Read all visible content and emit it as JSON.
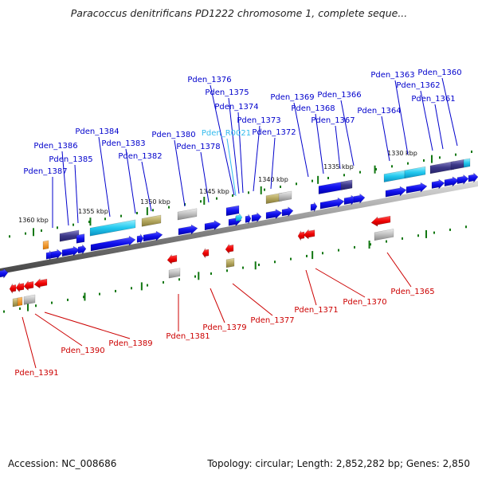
{
  "title": "Paracoccus denitrificans PD1222 chromosome 1, complete seque...",
  "accession": "Accession: NC_008686",
  "topology": "Topology: circular; Length: 2,852,282 bp; Genes: 2,850",
  "colors": {
    "top_label": "#0000cc",
    "rna_label": "#33bbee",
    "bottom_label": "#cc0000",
    "tick": "#117711",
    "backbone": "#888888"
  },
  "ruler_labels": [
    "1360 kbp",
    "1355 kbp",
    "1350 kbp",
    "1345 kbp",
    "1340 kbp",
    "1335 kbp",
    "1330 kbp"
  ],
  "top_genes": [
    {
      "label": "Pden_1387",
      "kind": "gene"
    },
    {
      "label": "Pden_1386",
      "kind": "gene"
    },
    {
      "label": "Pden_1385",
      "kind": "gene"
    },
    {
      "label": "Pden_1384",
      "kind": "gene"
    },
    {
      "label": "Pden_1383",
      "kind": "gene"
    },
    {
      "label": "Pden_1382",
      "kind": "gene"
    },
    {
      "label": "Pden_1380",
      "kind": "gene"
    },
    {
      "label": "Pden_1378",
      "kind": "gene"
    },
    {
      "label": "Pden_1376",
      "kind": "gene"
    },
    {
      "label": "Pden_1375",
      "kind": "gene"
    },
    {
      "label": "Pden_1374",
      "kind": "gene"
    },
    {
      "label": "Pden_R0021",
      "kind": "rna"
    },
    {
      "label": "Pden_1373",
      "kind": "gene"
    },
    {
      "label": "Pden_1372",
      "kind": "gene"
    },
    {
      "label": "Pden_1369",
      "kind": "gene"
    },
    {
      "label": "Pden_1368",
      "kind": "gene"
    },
    {
      "label": "Pden_1367",
      "kind": "gene"
    },
    {
      "label": "Pden_1366",
      "kind": "gene"
    },
    {
      "label": "Pden_1364",
      "kind": "gene"
    },
    {
      "label": "Pden_1363",
      "kind": "gene"
    },
    {
      "label": "Pden_1362",
      "kind": "gene"
    },
    {
      "label": "Pden_1361",
      "kind": "gene"
    },
    {
      "label": "Pden_1360",
      "kind": "gene"
    }
  ],
  "bottom_genes": [
    {
      "label": "Pden_1391"
    },
    {
      "label": "Pden_1390"
    },
    {
      "label": "Pden_1389"
    },
    {
      "label": "Pden_1381"
    },
    {
      "label": "Pden_1379"
    },
    {
      "label": "Pden_1377"
    },
    {
      "label": "Pden_1371"
    },
    {
      "label": "Pden_1370"
    },
    {
      "label": "Pden_1365"
    }
  ]
}
